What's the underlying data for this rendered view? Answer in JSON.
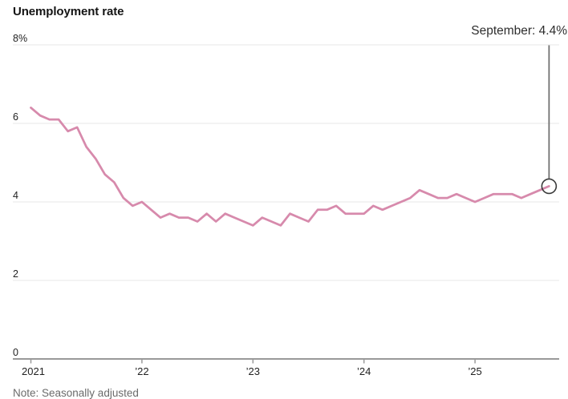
{
  "title": "Unemployment rate",
  "note": "Note: Seasonally adjusted",
  "annotation": {
    "label": "September: 4.4%"
  },
  "colors": {
    "line": "#d78aac",
    "grid": "#e7e7e7",
    "axis": "#999999",
    "callout_line": "#6e6e6e",
    "marker_stroke": "#3a3a3a",
    "tick_text": "#222222",
    "note_text": "#6b6b6b"
  },
  "chart_data": {
    "type": "line",
    "title": "Unemployment rate",
    "unit": "%",
    "frequency": "monthly",
    "x_range": [
      "January 2021",
      "September 2025"
    ],
    "ylim": [
      0,
      8
    ],
    "grid": "horizontal",
    "y_axis": {
      "ticks": [
        {
          "value": 0,
          "label": "0"
        },
        {
          "value": 2,
          "label": "2"
        },
        {
          "value": 4,
          "label": "4"
        },
        {
          "value": 6,
          "label": "6"
        },
        {
          "value": 8,
          "label": "8%"
        }
      ]
    },
    "x_axis": {
      "tick_month_indices": [
        0,
        12,
        24,
        36,
        48
      ],
      "tick_labels": [
        "2021",
        "’22",
        "’23",
        "’24",
        "’25"
      ]
    },
    "series": [
      {
        "name": "Unemployment rate",
        "values": [
          6.4,
          6.2,
          6.1,
          6.1,
          5.8,
          5.9,
          5.4,
          5.1,
          4.7,
          4.5,
          4.1,
          3.9,
          4.0,
          3.8,
          3.6,
          3.7,
          3.6,
          3.6,
          3.5,
          3.7,
          3.5,
          3.7,
          3.6,
          3.5,
          3.4,
          3.6,
          3.5,
          3.4,
          3.7,
          3.6,
          3.5,
          3.8,
          3.8,
          3.9,
          3.7,
          3.7,
          3.7,
          3.9,
          3.8,
          3.9,
          4.0,
          4.1,
          4.3,
          4.2,
          4.1,
          4.1,
          4.2,
          4.1,
          4.0,
          4.1,
          4.2,
          4.2,
          4.2,
          4.1,
          4.2,
          4.3,
          4.4
        ]
      }
    ],
    "highlight": {
      "month_index": 56,
      "label": "September: 4.4%",
      "value": 4.4
    }
  }
}
